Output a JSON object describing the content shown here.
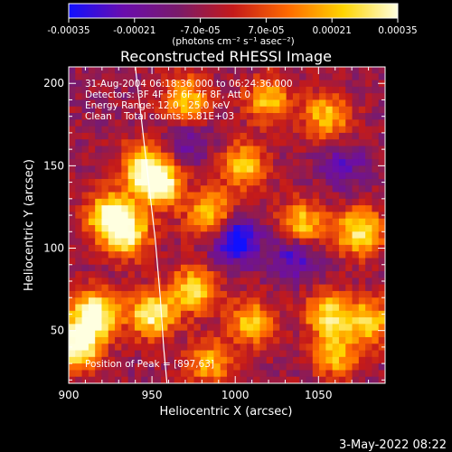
{
  "chart_data": {
    "type": "heatmap",
    "title": "Reconstructed RHESSI Image",
    "xlabel": "Heliocentric X (arcsec)",
    "ylabel": "Heliocentric Y (arcsec)",
    "xlim": [
      900,
      1090
    ],
    "ylim": [
      18,
      210
    ],
    "x_ticks": [
      "900",
      "950",
      "1000",
      "1050"
    ],
    "x_tick_values": [
      900,
      950,
      1000,
      1050
    ],
    "y_ticks": [
      "50",
      "100",
      "150",
      "200"
    ],
    "y_tick_values": [
      50,
      100,
      150,
      200
    ],
    "colorbar": {
      "label": "(photons cm⁻² s⁻¹ asec⁻²)",
      "ticks": [
        "-0.00035",
        "-0.00021",
        "-7.0e-05",
        "7.0e-05",
        "0.00021",
        "0.00035"
      ],
      "range": [
        -0.00035,
        0.00035
      ],
      "colors": [
        "#1010ff",
        "#6a0dad",
        "#7a1b6a",
        "#c41a1a",
        "#ff6a00",
        "#ffd400",
        "#ffffe0"
      ]
    },
    "annotations": [
      "31-Aug-2004 06:18:36.000 to 06:24:36.000",
      "Detectors: 3F 4F 5F 6F 7F 8F, Att 0",
      "Energy Range: 12.0 - 25.0 keV",
      "Clean    Total counts: 5.81E+03"
    ],
    "peak_label": "Position of Peak = [897,63]",
    "limb_curve": [
      [
        940,
        210
      ],
      [
        944,
        175
      ],
      [
        948,
        140
      ],
      [
        952,
        105
      ],
      [
        955,
        70
      ],
      [
        957,
        40
      ],
      [
        959,
        18
      ]
    ],
    "hot_spots": [
      {
        "x": 915,
        "y": 60,
        "level": 1.0
      },
      {
        "x": 905,
        "y": 40,
        "level": 0.95
      },
      {
        "x": 925,
        "y": 120,
        "level": 0.85
      },
      {
        "x": 935,
        "y": 108,
        "level": 0.7
      },
      {
        "x": 945,
        "y": 150,
        "level": 0.7
      },
      {
        "x": 955,
        "y": 138,
        "level": 0.75
      },
      {
        "x": 950,
        "y": 60,
        "level": 0.8
      },
      {
        "x": 975,
        "y": 75,
        "level": 0.6
      },
      {
        "x": 985,
        "y": 120,
        "level": 0.6
      },
      {
        "x": 1005,
        "y": 150,
        "level": 0.55
      },
      {
        "x": 1040,
        "y": 115,
        "level": 0.55
      },
      {
        "x": 1075,
        "y": 110,
        "level": 0.75
      },
      {
        "x": 1055,
        "y": 180,
        "level": 0.5
      },
      {
        "x": 1010,
        "y": 55,
        "level": 0.5
      },
      {
        "x": 1055,
        "y": 60,
        "level": 0.55
      },
      {
        "x": 1080,
        "y": 55,
        "level": 0.6
      },
      {
        "x": 970,
        "y": 190,
        "level": 0.55
      },
      {
        "x": 1020,
        "y": 190,
        "level": 0.45
      },
      {
        "x": 1060,
        "y": 35,
        "level": 0.45
      },
      {
        "x": 985,
        "y": 30,
        "level": 0.4
      }
    ],
    "cold_spots": [
      {
        "x": 1000,
        "y": 105,
        "level": -0.9
      },
      {
        "x": 1035,
        "y": 95,
        "level": -0.5
      },
      {
        "x": 970,
        "y": 165,
        "level": -0.3
      },
      {
        "x": 1065,
        "y": 150,
        "level": -0.35
      }
    ]
  },
  "footer_date": "3-May-2022 08:22"
}
